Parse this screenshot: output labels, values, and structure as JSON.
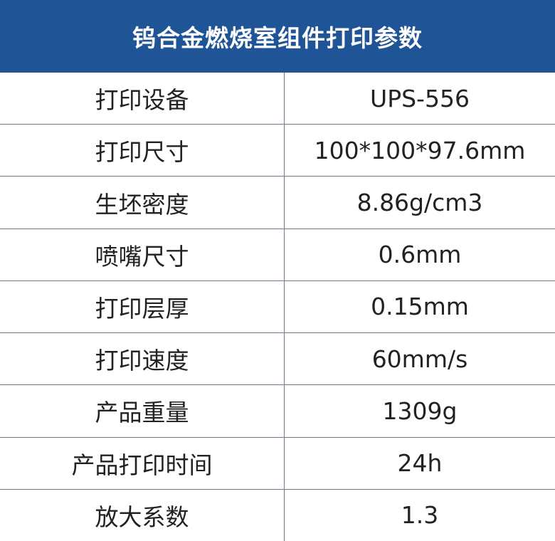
{
  "title": "钨合金燃烧室组件打印参数",
  "header_color": "#1f5597",
  "rows": [
    {
      "label": "打印设备",
      "value": "UPS-556"
    },
    {
      "label": "打印尺寸",
      "value": "100*100*97.6mm"
    },
    {
      "label": "生坯密度",
      "value": "8.86g/cm3"
    },
    {
      "label": "喷嘴尺寸",
      "value": "0.6mm"
    },
    {
      "label": "打印层厚",
      "value": "0.15mm"
    },
    {
      "label": "打印速度",
      "value": "60mm/s"
    },
    {
      "label": "产品重量",
      "value": "1309g"
    },
    {
      "label": "产品打印时间",
      "value": "24h"
    },
    {
      "label": "放大系数",
      "value": "1.3"
    }
  ]
}
